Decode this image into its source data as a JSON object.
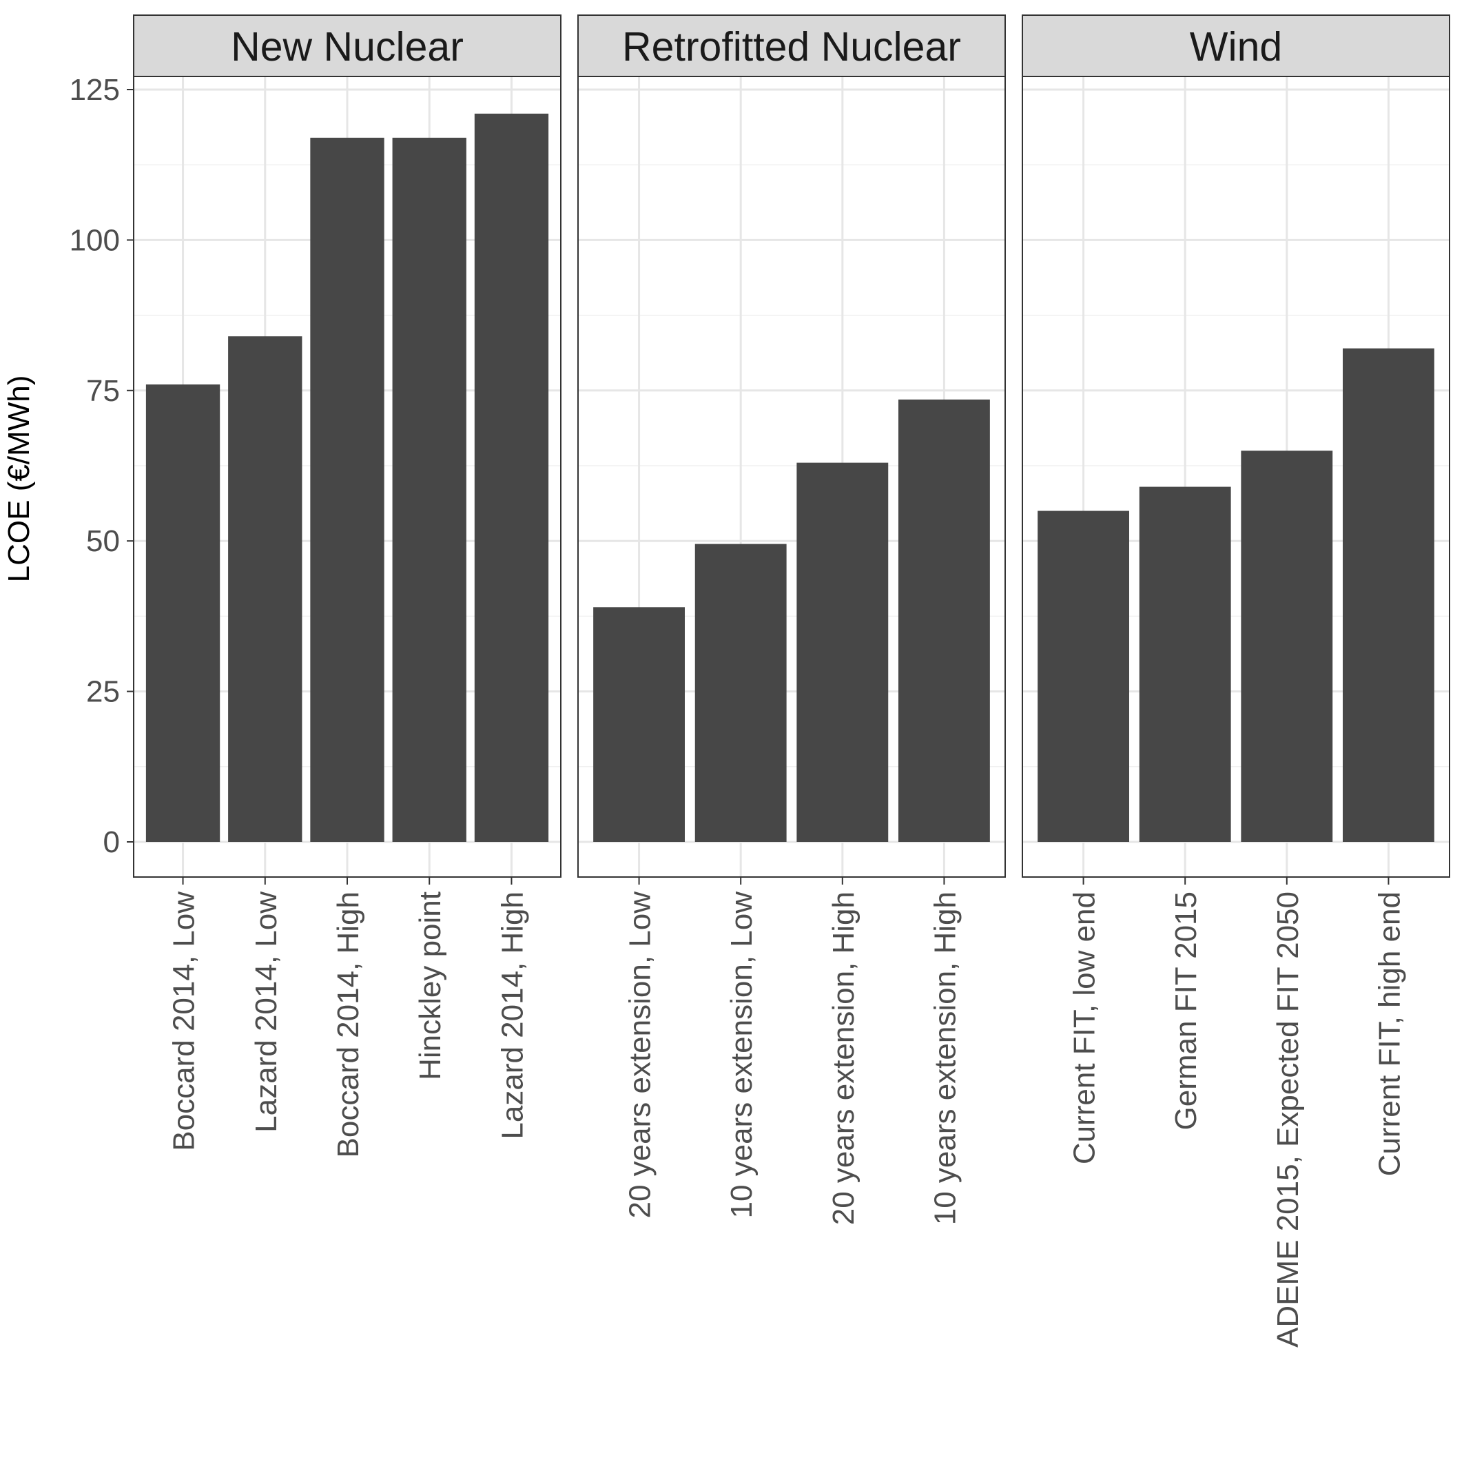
{
  "chart_data": {
    "type": "bar",
    "ylabel": "LCOE (€/MWh)",
    "xlabel": "",
    "ylim": [
      -6,
      127
    ],
    "yticks": [
      0,
      25,
      50,
      75,
      100,
      125
    ],
    "grid": true,
    "bar_color": "#474747",
    "panels": [
      {
        "name": "New Nuclear",
        "categories": [
          "Boccard 2014, Low",
          "Lazard 2014, Low",
          "Boccard 2014, High",
          "Hinckley point",
          "Lazard 2014, High"
        ],
        "values": [
          76,
          84,
          117,
          117,
          121
        ]
      },
      {
        "name": "Retrofitted Nuclear",
        "categories": [
          "20 years extension, Low",
          "10 years extension, Low",
          "20 years extension, High",
          "10 years extension, High"
        ],
        "values": [
          39,
          49.5,
          63,
          73.5
        ]
      },
      {
        "name": "Wind",
        "categories": [
          "Current FIT, low end",
          "German FIT 2015",
          "ADEME 2015, Expected FIT 2050",
          "Current FIT, high end"
        ],
        "values": [
          55,
          59,
          65,
          82
        ]
      }
    ]
  }
}
